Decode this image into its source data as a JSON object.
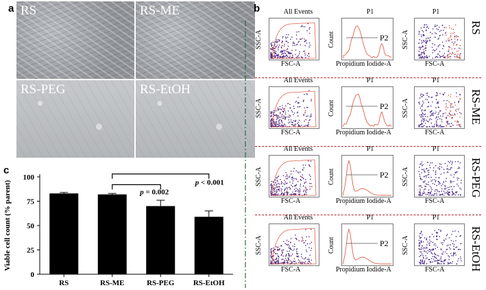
{
  "panel_a": {
    "letter": "a",
    "images": [
      {
        "label": "RS"
      },
      {
        "label": "RS-ME"
      },
      {
        "label": "RS-PEG"
      },
      {
        "label": "RS-EtOH"
      }
    ]
  },
  "panel_b": {
    "letter": "b",
    "rows": [
      {
        "label": "RS",
        "scatter_title": "All Events",
        "scatter_x": "FSC-A",
        "scatter_y": "SSC-A",
        "hist_title": "P1",
        "hist_x": "Propidium Iodide-A",
        "hist_y": "Count",
        "gate": "P2",
        "gated_title": "P1",
        "gated_x": "FSC-A",
        "gated_y": "SSC-A"
      },
      {
        "label": "RS-ME",
        "scatter_title": "All Events",
        "scatter_x": "FSC-A",
        "scatter_y": "SSC-A",
        "hist_title": "P1",
        "hist_x": "Propidium Iodide-A",
        "hist_y": "Count",
        "gate": "P2",
        "gated_title": "P1",
        "gated_x": "FSC-A",
        "gated_y": "SSC-A"
      },
      {
        "label": "RS-PEG",
        "scatter_title": "All Events",
        "scatter_x": "FSC-A",
        "scatter_y": "SSC-A",
        "hist_title": "P1",
        "hist_x": "Propidium Iodide-A",
        "hist_y": "Count",
        "gate": "P2",
        "gated_title": "P1",
        "gated_x": "FSC-A",
        "gated_y": "SSC-A"
      },
      {
        "label": "RS-EtOH",
        "scatter_title": "All Events",
        "scatter_x": "FSC-A",
        "scatter_y": "SSC-A",
        "hist_title": "P1",
        "hist_x": "Propidium Iodide-A",
        "hist_y": "Count",
        "gate": "P2",
        "gated_title": "P1",
        "gated_x": "FSC-A",
        "gated_y": "SSC-A"
      }
    ],
    "colors": {
      "dots": "#4b2a8a",
      "dots_alt": "#8a1f4a",
      "gate": "#e0604a",
      "separator": "#b22222"
    }
  },
  "panel_c": {
    "letter": "c"
  },
  "chart_data": {
    "type": "bar",
    "categories": [
      "RS",
      "RS-ME",
      "RS-PEG",
      "RS-EtOH"
    ],
    "values": [
      83,
      82,
      70,
      59
    ],
    "errors": [
      1,
      1,
      6,
      6
    ],
    "ylabel": "Viable cell count (% parent)",
    "ylim": [
      0,
      100
    ],
    "yticks": [
      0,
      25,
      50,
      75,
      100
    ],
    "bar_color": "#000000",
    "annotations": [
      {
        "from": "RS-ME",
        "to": "RS-PEG",
        "text_prefix": "p",
        "text": " = 0.002"
      },
      {
        "from": "RS-ME",
        "to": "RS-EtOH",
        "text_prefix": "p",
        "text": " < 0.001"
      }
    ]
  }
}
